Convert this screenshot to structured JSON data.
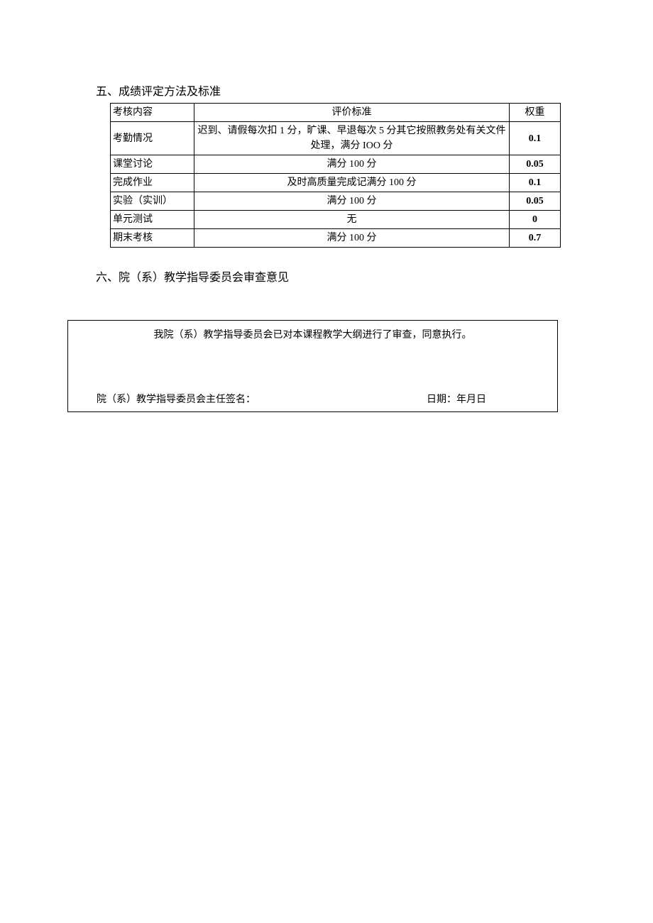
{
  "section5": {
    "heading": "五、成绩评定方法及标准",
    "table": {
      "columns": [
        "考核内容",
        "评价标准",
        "权重"
      ],
      "rows": [
        {
          "content": "考勤情况",
          "criteria": "迟到、请假每次扣 1 分，旷课、早退每次 5 分其它按照教务处有关文件处理，满分 IOO 分",
          "weight": "0.1"
        },
        {
          "content": "课堂讨论",
          "criteria": "满分 100 分",
          "weight": "0.05"
        },
        {
          "content": "完成作业",
          "criteria": "及时高质量完成记满分 100 分",
          "weight": "0.1"
        },
        {
          "content": "实验（实训）",
          "criteria": "满分 100 分",
          "weight": "0.05"
        },
        {
          "content": "单元测试",
          "criteria": "无",
          "weight": "0"
        },
        {
          "content": "期末考核",
          "criteria": "满分 100 分",
          "weight": "0.7"
        }
      ]
    }
  },
  "section6": {
    "heading": "六、院（系）教学指导委员会审查意见",
    "approval_statement": "我院（系）教学指导委员会已对本课程教学大纲进行了审查，同意执行。",
    "signature_label": "院（系）教学指导委员会主任签名：",
    "date_label": "日期：年月日"
  },
  "styling": {
    "page_bg": "#ffffff",
    "text_color": "#000000",
    "border_color": "#000000",
    "heading_fontsize": 16,
    "body_fontsize": 14,
    "table_col_widths": [
      118,
      null,
      72
    ],
    "approval_box_width": 691
  }
}
